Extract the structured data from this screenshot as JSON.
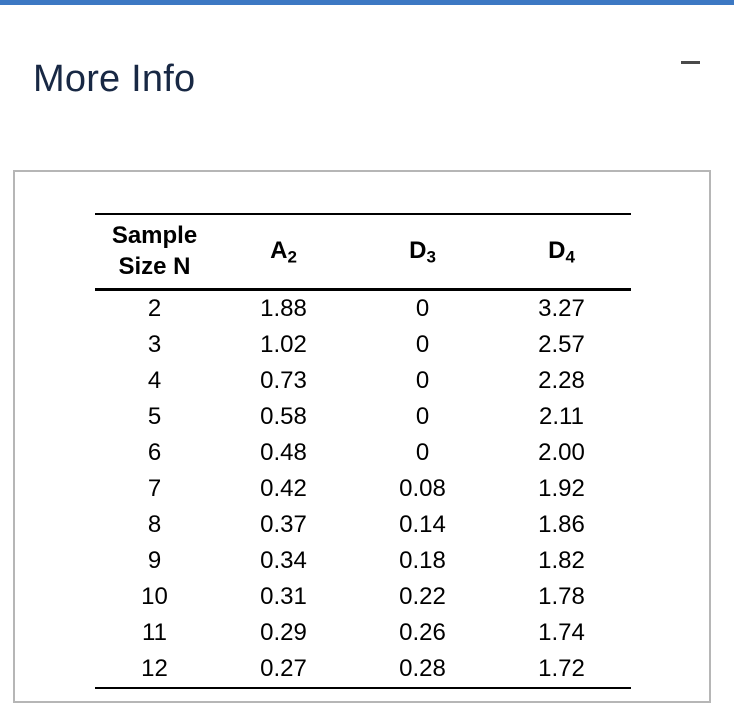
{
  "window": {
    "title": "More Info",
    "controls": {
      "minimize_icon": "minus-dash"
    }
  },
  "colors": {
    "accent-blue": "#3c78c3",
    "title-navy": "#182844",
    "panel-border": "#b6b6b6",
    "table-line": "#000000",
    "minimize-gray": "#4a4a4a"
  },
  "table": {
    "headers": {
      "col1": {
        "line1": "Sample",
        "line2": "Size N"
      },
      "col2": {
        "base": "A",
        "sub": "2"
      },
      "col3": {
        "base": "D",
        "sub": "3"
      },
      "col4": {
        "base": "D",
        "sub": "4"
      }
    },
    "rows": [
      [
        "2",
        "1.88",
        "0",
        "3.27"
      ],
      [
        "3",
        "1.02",
        "0",
        "2.57"
      ],
      [
        "4",
        "0.73",
        "0",
        "2.28"
      ],
      [
        "5",
        "0.58",
        "0",
        "2.11"
      ],
      [
        "6",
        "0.48",
        "0",
        "2.00"
      ],
      [
        "7",
        "0.42",
        "0.08",
        "1.92"
      ],
      [
        "8",
        "0.37",
        "0.14",
        "1.86"
      ],
      [
        "9",
        "0.34",
        "0.18",
        "1.82"
      ],
      [
        "10",
        "0.31",
        "0.22",
        "1.78"
      ],
      [
        "11",
        "0.29",
        "0.26",
        "1.74"
      ],
      [
        "12",
        "0.27",
        "0.28",
        "1.72"
      ]
    ]
  }
}
